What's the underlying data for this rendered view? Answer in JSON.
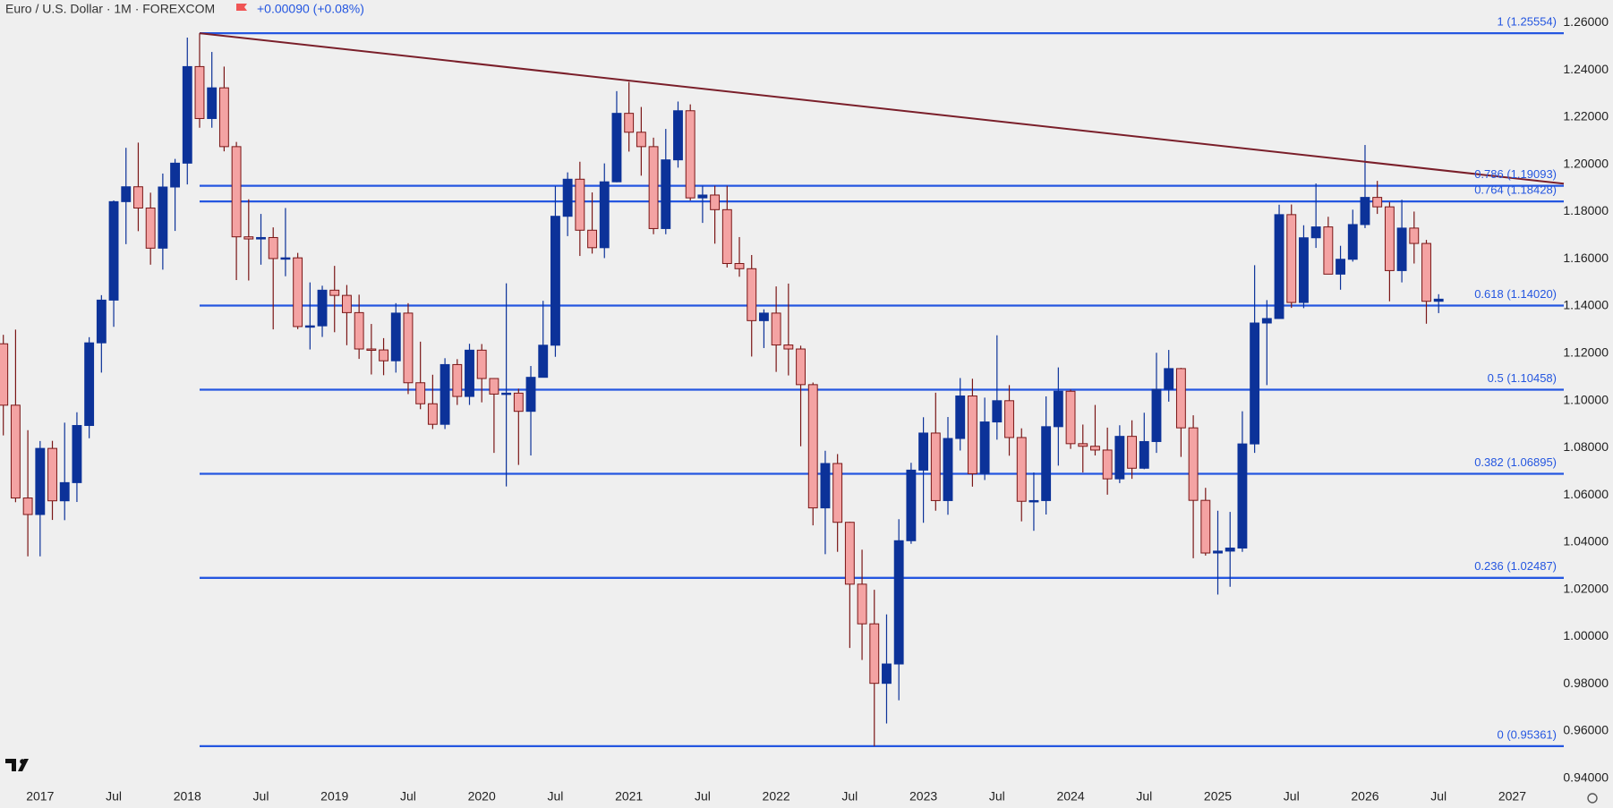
{
  "chart_data": {
    "type": "candlestick",
    "title": "Euro / U.S. Dollar · 1M · FOREXCOM",
    "change": "+0.00090 (+0.08%)",
    "up_color": "#0c3299",
    "down_color": "#f4a3a3",
    "down_edge": "#7a1616",
    "open": [
      1.124,
      1.098,
      1.0587,
      1.0517,
      1.0797,
      1.0575,
      1.0652,
      1.0894,
      1.1244,
      1.1425,
      1.1842,
      1.1905,
      1.1815,
      1.1645,
      1.1904,
      1.2005,
      1.2414,
      1.2194,
      1.2324,
      1.2075,
      1.1693,
      1.1684,
      1.169,
      1.1601,
      1.1604,
      1.1313,
      1.1316,
      1.1467,
      1.1445,
      1.1372,
      1.1218,
      1.1214,
      1.1168,
      1.137,
      1.1075,
      1.0986,
      1.0899,
      1.1152,
      1.1017,
      1.1213,
      1.1093,
      1.1027,
      1.1031,
      1.0954,
      1.1098,
      1.1234,
      1.178,
      1.1937,
      1.1721,
      1.1647,
      1.1926,
      1.2216,
      1.2136,
      1.2075,
      1.1728,
      1.2019,
      1.2227,
      1.1858,
      1.187,
      1.1808,
      1.158,
      1.1558,
      1.1338,
      1.137,
      1.1235,
      1.1218,
      1.1067,
      1.0545,
      1.0733,
      1.0484,
      1.0222,
      1.0054,
      0.9802,
      0.9884,
      1.0406,
      1.0705,
      1.0862,
      1.0576,
      1.0839,
      1.1019,
      1.069,
      1.0909,
      1.0999,
      1.0843,
      1.0573,
      1.0576,
      1.0889,
      1.1039,
      1.0817,
      1.0806,
      1.079,
      1.0668,
      1.0848,
      1.0713,
      1.0826,
      1.1047,
      1.1135,
      1.0884,
      1.0577,
      1.0354,
      1.0362,
      1.0375,
      1.0816,
      1.1328,
      1.1347,
      1.1787,
      1.1415,
      1.1689,
      1.1735,
      1.1535,
      1.1598,
      1.1745,
      1.186,
      1.182,
      1.155,
      1.173,
      1.1665,
      1.142
    ],
    "high": [
      1.1278,
      1.13,
      1.0874,
      1.0828,
      1.0829,
      1.0906,
      1.095,
      1.1268,
      1.1446,
      1.1847,
      1.207,
      1.2092,
      1.188,
      1.1961,
      1.2023,
      1.2537,
      1.25554,
      1.2476,
      1.2414,
      1.2095,
      1.1852,
      1.179,
      1.1733,
      1.1815,
      1.1625,
      1.15,
      1.1486,
      1.157,
      1.1489,
      1.1448,
      1.1324,
      1.1264,
      1.1412,
      1.1412,
      1.1249,
      1.1109,
      1.1179,
      1.1175,
      1.124,
      1.1239,
      1.1095,
      1.1496,
      1.105,
      1.1146,
      1.1422,
      1.1908,
      1.1966,
      1.2011,
      1.1881,
      1.2004,
      1.231,
      1.2349,
      1.2243,
      1.2113,
      1.215,
      1.2266,
      1.2254,
      1.1909,
      1.1909,
      1.1909,
      1.1692,
      1.1616,
      1.1386,
      1.1483,
      1.1495,
      1.1232,
      1.1076,
      1.0787,
      1.0773,
      1.0486,
      1.0368,
      1.0198,
      1.0094,
      1.0497,
      1.0736,
      1.0929,
      1.1033,
      1.093,
      1.1095,
      1.1092,
      1.1012,
      1.1276,
      1.1065,
      1.0882,
      1.0695,
      1.1017,
      1.114,
      1.1046,
      1.0898,
      1.0981,
      1.0885,
      1.0895,
      1.0916,
      1.0948,
      1.1202,
      1.1214,
      1.1138,
      1.0937,
      1.063,
      1.0533,
      1.0528,
      1.0954,
      1.1573,
      1.1425,
      1.1829,
      1.183,
      1.1742,
      1.1919,
      1.1778,
      1.1655,
      1.1808,
      1.2082,
      1.193,
      1.184,
      1.185,
      1.18,
      1.168,
      1.145
    ],
    "low": [
      1.0852,
      1.0569,
      1.034,
      1.034,
      1.0494,
      1.0493,
      1.057,
      1.084,
      1.1118,
      1.1312,
      1.1662,
      1.1717,
      1.1575,
      1.1554,
      1.1718,
      1.1915,
      1.2155,
      1.2155,
      1.2055,
      1.151,
      1.1508,
      1.1575,
      1.1301,
      1.1526,
      1.1302,
      1.1216,
      1.1269,
      1.1289,
      1.1234,
      1.1176,
      1.111,
      1.1107,
      1.1118,
      1.1027,
      1.0963,
      1.0879,
      1.0879,
      1.0981,
      1.0981,
      1.0992,
      1.0778,
      1.0636,
      1.0727,
      1.0767,
      1.1098,
      1.1185,
      1.1696,
      1.1612,
      1.1622,
      1.1603,
      1.1924,
      1.2054,
      1.1952,
      1.1704,
      1.1704,
      1.1986,
      1.1847,
      1.1752,
      1.1664,
      1.1563,
      1.1524,
      1.1186,
      1.1222,
      1.1121,
      1.1106,
      1.0806,
      1.0471,
      1.0349,
      1.0359,
      0.9952,
      0.9901,
      0.95361,
      0.9632,
      0.973,
      1.0393,
      1.0482,
      1.0533,
      1.0516,
      1.0788,
      1.0635,
      1.0663,
      1.0834,
      1.0766,
      1.0488,
      1.0448,
      1.0517,
      1.0724,
      1.0795,
      1.0695,
      1.0767,
      1.0601,
      1.065,
      1.0668,
      1.0709,
      1.0778,
      1.0995,
      1.0761,
      1.0332,
      1.0343,
      1.0178,
      1.0211,
      1.0359,
      1.0778,
      1.1065,
      1.1346,
      1.1392,
      1.1391,
      1.1646,
      1.1542,
      1.1469,
      1.1588,
      1.173,
      1.179,
      1.142,
      1.15,
      1.158,
      1.1325,
      1.137
    ],
    "close": [
      1.098,
      1.0587,
      1.0517,
      1.0797,
      1.0575,
      1.0652,
      1.0894,
      1.1244,
      1.1425,
      1.1842,
      1.1905,
      1.1815,
      1.1645,
      1.1904,
      1.2005,
      1.2414,
      1.2194,
      1.2324,
      1.2075,
      1.1693,
      1.1684,
      1.169,
      1.1601,
      1.1604,
      1.1313,
      1.1316,
      1.1467,
      1.1445,
      1.1372,
      1.1218,
      1.1214,
      1.1168,
      1.137,
      1.1075,
      1.0986,
      1.0899,
      1.1152,
      1.1017,
      1.1213,
      1.1093,
      1.1027,
      1.1031,
      1.0954,
      1.1098,
      1.1234,
      1.178,
      1.1937,
      1.1721,
      1.1647,
      1.1926,
      1.2216,
      1.2136,
      1.2075,
      1.1728,
      1.2019,
      1.2227,
      1.1858,
      1.187,
      1.1808,
      1.158,
      1.1558,
      1.1338,
      1.137,
      1.1235,
      1.1218,
      1.1067,
      1.0545,
      1.0733,
      1.0484,
      1.0222,
      1.0054,
      0.9802,
      0.9884,
      1.0406,
      1.0705,
      1.0862,
      1.0576,
      1.0839,
      1.1019,
      1.069,
      1.0909,
      1.0999,
      1.0843,
      1.0573,
      1.0576,
      1.0889,
      1.1039,
      1.0817,
      1.0806,
      1.079,
      1.0668,
      1.0848,
      1.0713,
      1.0826,
      1.1047,
      1.1135,
      1.0884,
      1.0577,
      1.0354,
      1.0362,
      1.0375,
      1.0816,
      1.1328,
      1.1347,
      1.1787,
      1.1415,
      1.1689,
      1.1735,
      1.1535,
      1.1598,
      1.1745,
      1.186,
      1.182,
      1.155,
      1.173,
      1.1665,
      1.142,
      1.1429
    ],
    "xlim": [
      -0.27,
      127.2
    ],
    "ylim": [
      0.9365,
      1.2696
    ],
    "yticks": [
      {
        "value": 0.94,
        "label": "0.94000"
      },
      {
        "value": 0.96,
        "label": "0.96000"
      },
      {
        "value": 0.98,
        "label": "0.98000"
      },
      {
        "value": 1.0,
        "label": "1.00000"
      },
      {
        "value": 1.02,
        "label": "1.02000"
      },
      {
        "value": 1.04,
        "label": "1.04000"
      },
      {
        "value": 1.06,
        "label": "1.06000"
      },
      {
        "value": 1.08,
        "label": "1.08000"
      },
      {
        "value": 1.1,
        "label": "1.10000"
      },
      {
        "value": 1.12,
        "label": "1.12000"
      },
      {
        "value": 1.14,
        "label": "1.14000"
      },
      {
        "value": 1.16,
        "label": "1.16000"
      },
      {
        "value": 1.18,
        "label": "1.18000"
      },
      {
        "value": 1.2,
        "label": "1.20000"
      },
      {
        "value": 1.22,
        "label": "1.22000"
      },
      {
        "value": 1.24,
        "label": "1.24000"
      },
      {
        "value": 1.26,
        "label": "1.26000"
      }
    ],
    "xticks": [
      {
        "value": 3,
        "label": "2017"
      },
      {
        "value": 9,
        "label": "Jul"
      },
      {
        "value": 15,
        "label": "2018"
      },
      {
        "value": 21,
        "label": "Jul"
      },
      {
        "value": 27,
        "label": "2019"
      },
      {
        "value": 33,
        "label": "Jul"
      },
      {
        "value": 39,
        "label": "2020"
      },
      {
        "value": 45,
        "label": "Jul"
      },
      {
        "value": 51,
        "label": "2021"
      },
      {
        "value": 57,
        "label": "Jul"
      },
      {
        "value": 63,
        "label": "2022"
      },
      {
        "value": 69,
        "label": "Jul"
      },
      {
        "value": 75,
        "label": "2023"
      },
      {
        "value": 81,
        "label": "Jul"
      },
      {
        "value": 87,
        "label": "2024"
      },
      {
        "value": 93,
        "label": "Jul"
      },
      {
        "value": 99,
        "label": "2025"
      },
      {
        "value": 105,
        "label": "Jul"
      },
      {
        "value": 111,
        "label": "2026"
      },
      {
        "value": 117,
        "label": "Jul"
      },
      {
        "value": 123,
        "label": "2027"
      }
    ],
    "fib_color": "#2456e0",
    "fib_start": 16,
    "fib_levels": [
      {
        "label": "1 (1.25554)",
        "value": 1.25554
      },
      {
        "label": "0.786 (1.19093)",
        "value": 1.19093
      },
      {
        "label": "0.764 (1.18428)",
        "value": 1.18428
      },
      {
        "label": "0.618 (1.14020)",
        "value": 1.1402
      },
      {
        "label": "0.5 (1.10458)",
        "value": 1.10458
      },
      {
        "label": "0.382 (1.06895)",
        "value": 1.06895
      },
      {
        "label": "0.236 (1.02487)",
        "value": 1.02487
      },
      {
        "label": "0 (0.95361)",
        "value": 0.95361
      }
    ],
    "trendline": {
      "color": "#7a1f2a",
      "x": [
        16,
        127.2
      ],
      "y": [
        1.25554,
        1.1918
      ]
    }
  }
}
